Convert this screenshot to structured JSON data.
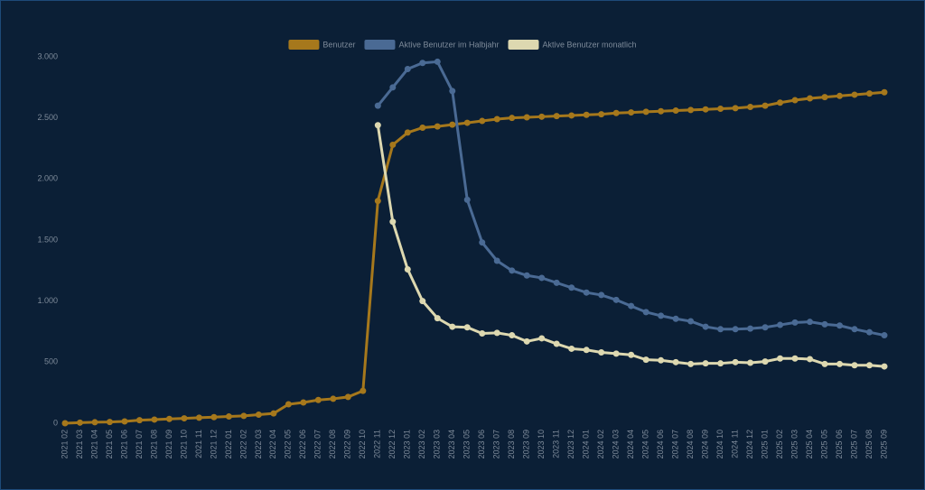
{
  "chart_data": {
    "type": "line",
    "categories": [
      "2021 02",
      "2021 03",
      "2021 04",
      "2021 05",
      "2021 06",
      "2021 07",
      "2021 08",
      "2021 09",
      "2021 10",
      "2021 11",
      "2021 12",
      "2022 01",
      "2022 02",
      "2022 03",
      "2022 04",
      "2022 05",
      "2022 06",
      "2022 07",
      "2022 08",
      "2022 09",
      "2022 10",
      "2022 11",
      "2022 12",
      "2023 01",
      "2023 02",
      "2023 03",
      "2023 04",
      "2023 05",
      "2023 06",
      "2023 07",
      "2023 08",
      "2023 09",
      "2023 10",
      "2023 11",
      "2023 12",
      "2024 01",
      "2024 02",
      "2024 03",
      "2024 04",
      "2024 05",
      "2024 06",
      "2024 07",
      "2024 08",
      "2024 09",
      "2024 10",
      "2024 11",
      "2024 12",
      "2025 01",
      "2025 02",
      "2025 03",
      "2025 04",
      "2025 05",
      "2025 06",
      "2025 07",
      "2025 08",
      "2025 09"
    ],
    "series": [
      {
        "name": "Benutzer",
        "color": "#a6781c",
        "values": [
          0,
          5,
          8,
          10,
          15,
          25,
          30,
          35,
          40,
          45,
          50,
          55,
          60,
          70,
          80,
          155,
          170,
          190,
          200,
          215,
          265,
          1820,
          2280,
          2380,
          2420,
          2430,
          2445,
          2460,
          2475,
          2490,
          2500,
          2505,
          2510,
          2515,
          2520,
          2525,
          2530,
          2540,
          2545,
          2550,
          2555,
          2560,
          2565,
          2570,
          2575,
          2580,
          2590,
          2600,
          2625,
          2645,
          2660,
          2670,
          2680,
          2690,
          2700,
          2710
        ]
      },
      {
        "name": "Aktive Benutzer im Halbjahr",
        "color": "#4a6a94",
        "values": [
          null,
          null,
          null,
          null,
          null,
          null,
          null,
          null,
          null,
          null,
          null,
          null,
          null,
          null,
          null,
          null,
          null,
          null,
          null,
          null,
          null,
          2600,
          2750,
          2900,
          2950,
          2960,
          2720,
          1830,
          1480,
          1330,
          1250,
          1210,
          1190,
          1150,
          1110,
          1070,
          1050,
          1010,
          960,
          910,
          880,
          855,
          835,
          790,
          770,
          770,
          775,
          785,
          805,
          825,
          830,
          810,
          800,
          770,
          745,
          720
        ]
      },
      {
        "name": "Aktive Benutzer monatlich",
        "color": "#ddd8b0",
        "values": [
          null,
          null,
          null,
          null,
          null,
          null,
          null,
          null,
          null,
          null,
          null,
          null,
          null,
          null,
          null,
          null,
          null,
          null,
          null,
          null,
          null,
          2440,
          1650,
          1260,
          1000,
          860,
          790,
          785,
          735,
          740,
          720,
          670,
          695,
          650,
          610,
          600,
          580,
          570,
          560,
          520,
          515,
          500,
          485,
          490,
          490,
          500,
          495,
          505,
          530,
          530,
          525,
          485,
          485,
          475,
          475,
          465
        ]
      }
    ],
    "ylim": [
      0,
      3000
    ],
    "yticks": [
      0,
      500,
      {
        "value": 1000,
        "label": "1.000"
      },
      {
        "value": 1500,
        "label": "1.500"
      },
      {
        "value": 2000,
        "label": "2.000"
      },
      {
        "value": 2500,
        "label": "2.500"
      },
      {
        "value": 3000,
        "label": "3.000"
      }
    ],
    "legend": "top",
    "grid": false
  }
}
